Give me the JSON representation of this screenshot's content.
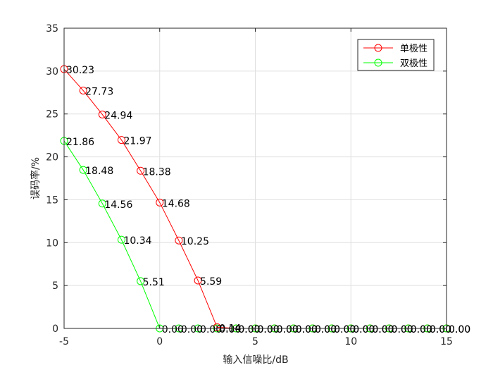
{
  "chart_data": {
    "type": "line",
    "xlabel": "输入信噪比/dB",
    "ylabel": "误码率/%",
    "xlim": [
      -5,
      15
    ],
    "ylim": [
      0,
      35
    ],
    "xticks": [
      -5,
      0,
      5,
      10,
      15
    ],
    "yticks": [
      0,
      5,
      10,
      15,
      20,
      25,
      30,
      35
    ],
    "grid": true,
    "legend_position": "top-right",
    "x": [
      -5,
      -4,
      -3,
      -2,
      -1,
      0,
      1,
      2,
      3,
      4,
      5,
      6,
      7,
      8,
      9,
      10,
      11,
      12,
      13,
      14,
      15
    ],
    "series": [
      {
        "name": "单极性",
        "color": "#ff0000",
        "marker": "circle",
        "values": [
          30.23,
          27.73,
          24.94,
          21.97,
          18.38,
          14.68,
          10.25,
          5.59,
          0.14,
          0.0,
          0.0,
          0.0,
          0.0,
          0.0,
          0.0,
          0.0,
          0.0,
          0.0,
          0.0,
          0.0,
          0.0
        ],
        "labels": [
          "30.23",
          "27.73",
          "24.94",
          "21.97",
          "18.38",
          "14.68",
          "10.25",
          "5.59",
          "0.14",
          "0.00",
          "0.00",
          "0.00",
          "0.00",
          "0.00",
          "0.00",
          "0.00",
          "0.00",
          "0.00",
          "0.00",
          "0.00",
          "0.00"
        ]
      },
      {
        "name": "双极性",
        "color": "#00ff00",
        "marker": "circle",
        "values": [
          21.86,
          18.48,
          14.56,
          10.34,
          5.51,
          0.0,
          0.0,
          0.0,
          0.0,
          0.0,
          0.0,
          0.0,
          0.0,
          0.0,
          0.0,
          0.0,
          0.0,
          0.0,
          0.0,
          0.0,
          0.0
        ],
        "labels": [
          "21.86",
          "18.48",
          "14.56",
          "10.34",
          "5.51",
          "0.00",
          "0.00",
          "0.00",
          "0.00",
          "0.00",
          "0.00",
          "0.00",
          "0.00",
          "0.00",
          "0.00",
          "0.00",
          "0.00",
          "0.00",
          "0.00",
          "0.00",
          "0.00"
        ]
      }
    ]
  }
}
